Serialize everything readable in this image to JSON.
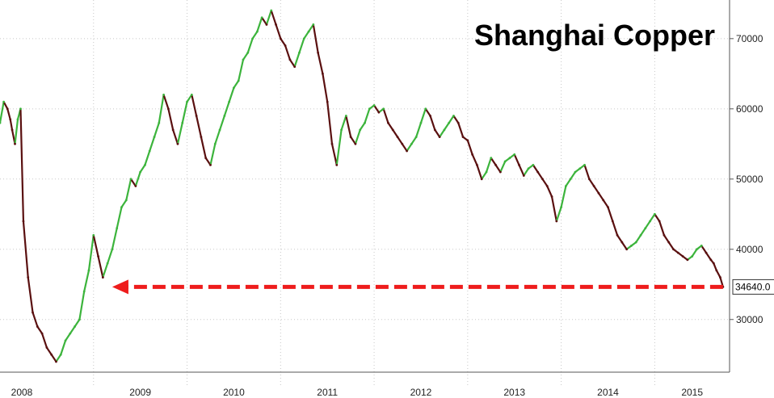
{
  "chart_data": {
    "type": "line",
    "title": "Shanghai Copper",
    "xlabel": "",
    "ylabel": "",
    "x_tick_labels": [
      "2008",
      "2009",
      "2010",
      "2011",
      "2012",
      "2013",
      "2014",
      "2015"
    ],
    "y_tick_labels": [
      "30000",
      "40000",
      "50000",
      "60000",
      "70000"
    ],
    "y_ticks": [
      30000,
      40000,
      50000,
      60000,
      70000
    ],
    "ylim": [
      22500,
      75500
    ],
    "xlim": [
      2008.0,
      2015.8
    ],
    "grid": true,
    "y_axis_position": "right",
    "last_value_label": "34640.0",
    "last_value": 34640,
    "series": [
      {
        "x": [
          2008.0,
          2008.04,
          2008.08,
          2008.11,
          2008.13,
          2008.16,
          2008.19,
          2008.22,
          2008.25,
          2008.3,
          2008.35,
          2008.4,
          2008.45,
          2008.5,
          2008.55,
          2008.6,
          2008.65,
          2008.7,
          2008.75,
          2008.8,
          2008.85,
          2008.9,
          2008.95,
          2009.0,
          2009.05,
          2009.1,
          2009.15,
          2009.2,
          2009.25,
          2009.3,
          2009.35,
          2009.4,
          2009.45,
          2009.5,
          2009.55,
          2009.6,
          2009.65,
          2009.7,
          2009.75,
          2009.8,
          2009.85,
          2009.9,
          2009.95,
          2010.0,
          2010.05,
          2010.1,
          2010.15,
          2010.2,
          2010.25,
          2010.3,
          2010.35,
          2010.4,
          2010.45,
          2010.5,
          2010.55,
          2010.6,
          2010.65,
          2010.7,
          2010.75,
          2010.8,
          2010.85,
          2010.9,
          2010.95,
          2011.0,
          2011.05,
          2011.1,
          2011.15,
          2011.2,
          2011.25,
          2011.3,
          2011.35,
          2011.4,
          2011.45,
          2011.5,
          2011.55,
          2011.6,
          2011.65,
          2011.7,
          2011.75,
          2011.8,
          2011.85,
          2011.9,
          2011.95,
          2012.0,
          2012.05,
          2012.1,
          2012.15,
          2012.2,
          2012.25,
          2012.3,
          2012.35,
          2012.4,
          2012.45,
          2012.5,
          2012.55,
          2012.6,
          2012.65,
          2012.7,
          2012.75,
          2012.8,
          2012.85,
          2012.9,
          2012.95,
          2013.0,
          2013.05,
          2013.1,
          2013.15,
          2013.2,
          2013.25,
          2013.3,
          2013.35,
          2013.4,
          2013.45,
          2013.5,
          2013.55,
          2013.6,
          2013.65,
          2013.7,
          2013.75,
          2013.8,
          2013.85,
          2013.9,
          2013.95,
          2014.0,
          2014.05,
          2014.1,
          2014.15,
          2014.2,
          2014.25,
          2014.3,
          2014.35,
          2014.4,
          2014.45,
          2014.5,
          2014.55,
          2014.6,
          2014.65,
          2014.7,
          2014.75,
          2014.8,
          2014.85,
          2014.9,
          2014.95,
          2015.0,
          2015.05,
          2015.1,
          2015.15,
          2015.2,
          2015.25,
          2015.3,
          2015.35,
          2015.4,
          2015.45,
          2015.5,
          2015.55,
          2015.6,
          2015.63,
          2015.66,
          2015.7,
          2015.73
        ],
        "values": [
          58000,
          61000,
          60000,
          58500,
          57000,
          55000,
          58500,
          60000,
          44000,
          36000,
          31000,
          29000,
          28000,
          26000,
          25000,
          24000,
          25000,
          27000,
          28000,
          29000,
          30000,
          34000,
          37000,
          42000,
          39000,
          36000,
          38000,
          40000,
          43000,
          46000,
          47000,
          50000,
          49000,
          51000,
          52000,
          54000,
          56000,
          58000,
          62000,
          60000,
          57000,
          55000,
          58000,
          61000,
          62000,
          59000,
          56000,
          53000,
          52000,
          55000,
          57000,
          59000,
          61000,
          63000,
          64000,
          67000,
          68000,
          70000,
          71000,
          73000,
          72000,
          74000,
          72000,
          70000,
          69000,
          67000,
          66000,
          68000,
          70000,
          71000,
          72000,
          68000,
          65000,
          61000,
          55000,
          52000,
          57000,
          59000,
          56000,
          55000,
          57000,
          58000,
          60000,
          60500,
          59500,
          60000,
          58000,
          57000,
          56000,
          55000,
          54000,
          55000,
          56000,
          58000,
          60000,
          59000,
          57000,
          56000,
          57000,
          58000,
          59000,
          58000,
          56000,
          55500,
          53500,
          52000,
          50000,
          51000,
          53000,
          52000,
          51000,
          52500,
          53000,
          53500,
          52000,
          50500,
          51500,
          52000,
          51000,
          50000,
          49000,
          47500,
          44000,
          46000,
          49000,
          50000,
          51000,
          51500,
          52000,
          50000,
          49000,
          48000,
          47000,
          46000,
          44000,
          42000,
          41000,
          40000,
          40500,
          41000,
          42000,
          43000,
          44000,
          45000,
          44000,
          42000,
          41000,
          40000,
          39500,
          39000,
          38500,
          39000,
          40000,
          40500,
          39500,
          38500,
          38000,
          37000,
          36000,
          34640
        ]
      }
    ],
    "annotation": {
      "type": "horizontal-arrow",
      "value": 34640,
      "x_from": 2015.73,
      "x_to": 2009.2,
      "color": "#ee1c1c"
    },
    "colors": {
      "up": "#3cb43c",
      "down": "#5a1010",
      "grid": "#c8c8c8",
      "arrow": "#ee1c1c"
    }
  }
}
